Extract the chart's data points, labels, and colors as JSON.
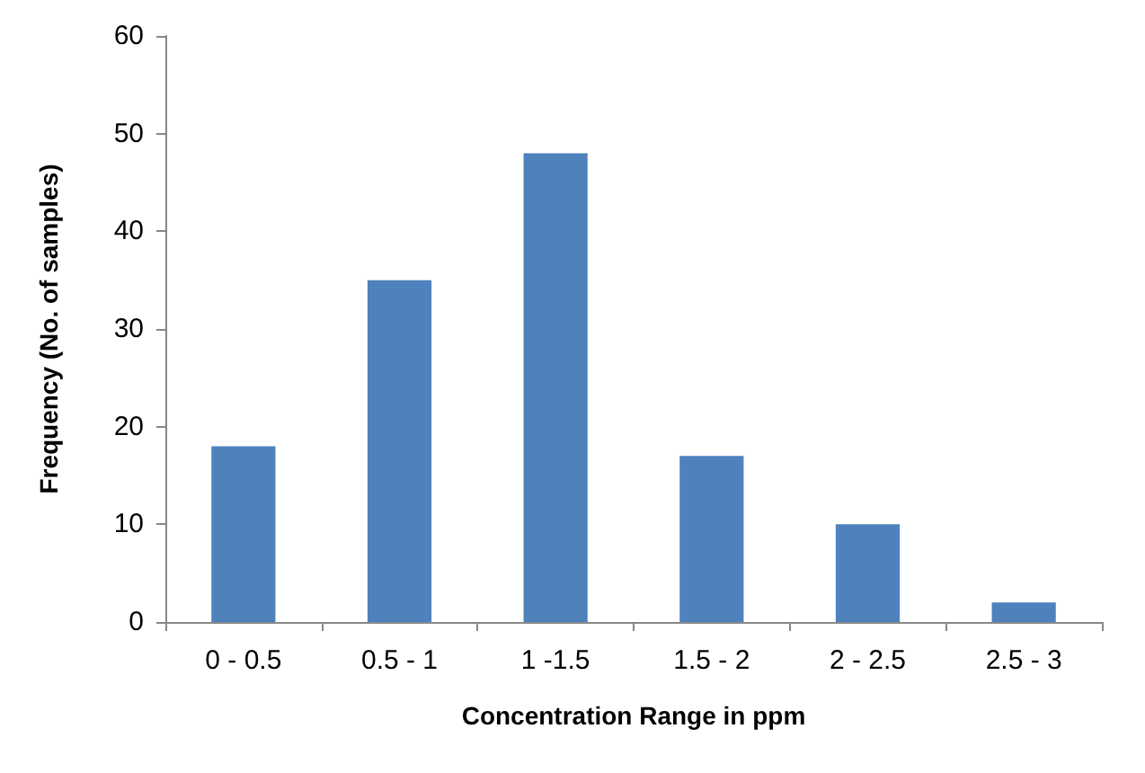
{
  "chart_data": {
    "type": "bar",
    "xlabel": "Concentration Range in ppm",
    "ylabel": "Frequency (No. of samples)",
    "categories": [
      "0 - 0.5",
      "0.5 - 1",
      "1 -1.5",
      "1.5 - 2",
      "2 - 2.5",
      "2.5 - 3"
    ],
    "values": [
      18,
      35,
      48,
      17,
      10,
      2
    ],
    "color": "#4f81bd",
    "ylim": [
      0,
      60
    ],
    "yticks": [
      0,
      10,
      20,
      30,
      40,
      50,
      60
    ],
    "grid": false
  }
}
